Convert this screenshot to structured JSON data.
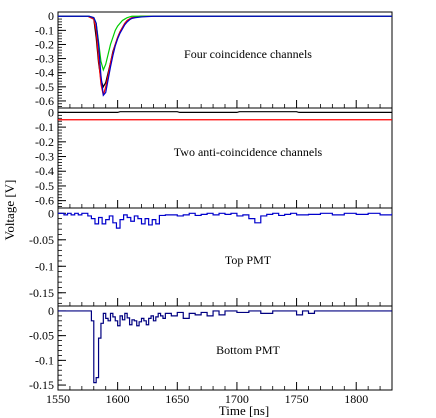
{
  "figure": {
    "ylabel": "Voltage [V]",
    "xlabel": "Time [ns]"
  },
  "colors": {
    "black": "#000000",
    "red": "#ff0000",
    "green": "#00cc00",
    "blue": "#0000cc",
    "navy": "#000080"
  },
  "chart_data": [
    {
      "type": "line",
      "annotation": "Four coincidence channels",
      "xlim": [
        1550,
        1830
      ],
      "ylim": [
        -0.65,
        0.03
      ],
      "yticks": [
        0,
        -0.1,
        -0.2,
        -0.3,
        -0.4,
        -0.5,
        -0.6
      ],
      "ytick_labels": [
        "0",
        "-0.1",
        "-0.2",
        "-0.3",
        "-0.4",
        "-0.5",
        "-0.6"
      ],
      "series": [
        {
          "color_key": "black",
          "x": [
            1550,
            1575,
            1580,
            1582,
            1584,
            1586,
            1588,
            1590,
            1592,
            1594,
            1596,
            1598,
            1600,
            1602,
            1604,
            1606,
            1608,
            1610,
            1612,
            1615,
            1620,
            1630,
            1640,
            1830
          ],
          "y": [
            0,
            0,
            -0.02,
            -0.15,
            -0.33,
            -0.45,
            -0.5,
            -0.47,
            -0.4,
            -0.33,
            -0.25,
            -0.2,
            -0.15,
            -0.11,
            -0.08,
            -0.05,
            -0.03,
            -0.02,
            -0.01,
            -0.005,
            0,
            0,
            0,
            0
          ]
        },
        {
          "color_key": "red",
          "x": [
            1550,
            1575,
            1580,
            1582,
            1584,
            1586,
            1588,
            1590,
            1592,
            1594,
            1596,
            1598,
            1600,
            1602,
            1604,
            1606,
            1608,
            1610,
            1612,
            1615,
            1620,
            1630,
            1640,
            1830
          ],
          "y": [
            0,
            0,
            -0.02,
            -0.1,
            -0.3,
            -0.48,
            -0.56,
            -0.5,
            -0.42,
            -0.33,
            -0.26,
            -0.2,
            -0.15,
            -0.11,
            -0.08,
            -0.05,
            -0.03,
            -0.02,
            -0.01,
            -0.005,
            0,
            0,
            0,
            0
          ]
        },
        {
          "color_key": "green",
          "x": [
            1550,
            1576,
            1580,
            1582,
            1584,
            1586,
            1588,
            1590,
            1592,
            1594,
            1596,
            1598,
            1600,
            1602,
            1604,
            1606,
            1608,
            1610,
            1612,
            1615,
            1620,
            1630,
            1640,
            1830
          ],
          "y": [
            0,
            0,
            -0.01,
            -0.05,
            -0.18,
            -0.32,
            -0.38,
            -0.34,
            -0.27,
            -0.2,
            -0.15,
            -0.1,
            -0.07,
            -0.05,
            -0.03,
            -0.02,
            -0.01,
            -0.005,
            0,
            0,
            0,
            0,
            0,
            0
          ]
        },
        {
          "color_key": "blue",
          "x": [
            1550,
            1576,
            1580,
            1582,
            1584,
            1586,
            1588,
            1590,
            1592,
            1594,
            1596,
            1598,
            1600,
            1602,
            1604,
            1606,
            1608,
            1610,
            1612,
            1615,
            1620,
            1630,
            1640,
            1830
          ],
          "y": [
            0,
            0,
            -0.01,
            -0.05,
            -0.2,
            -0.42,
            -0.56,
            -0.54,
            -0.45,
            -0.36,
            -0.28,
            -0.21,
            -0.16,
            -0.12,
            -0.09,
            -0.06,
            -0.04,
            -0.025,
            -0.015,
            -0.01,
            -0.005,
            0,
            0,
            0
          ]
        }
      ]
    },
    {
      "type": "line",
      "annotation": "Two anti-coincidence channels",
      "xlim": [
        1550,
        1830
      ],
      "ylim": [
        -0.65,
        0.03
      ],
      "yticks": [
        0,
        -0.1,
        -0.2,
        -0.3,
        -0.4,
        -0.5,
        -0.6
      ],
      "ytick_labels": [
        "0",
        "-0.1",
        "-0.2",
        "-0.3",
        "-0.4",
        "-0.5",
        "-0.6"
      ],
      "series": [
        {
          "color_key": "black",
          "x": [
            1550,
            1600,
            1602,
            1650,
            1652,
            1700,
            1702,
            1750,
            1752,
            1830
          ],
          "y": [
            0,
            0,
            0.005,
            0.005,
            0,
            0,
            0.005,
            0.005,
            0,
            0
          ]
        },
        {
          "color_key": "red",
          "x": [
            1550,
            1830
          ],
          "y": [
            -0.05,
            -0.05
          ]
        }
      ]
    },
    {
      "type": "line",
      "annotation": "Top PMT",
      "xlim": [
        1550,
        1830
      ],
      "ylim": [
        -0.175,
        0.01
      ],
      "yticks": [
        0,
        -0.05,
        -0.1,
        -0.15
      ],
      "ytick_labels": [
        "0",
        "-0.05",
        "-0.1",
        "-0.15"
      ],
      "series": [
        {
          "color_key": "blue",
          "step": true,
          "x": [
            1550,
            1555,
            1558,
            1561,
            1564,
            1567,
            1570,
            1575,
            1578,
            1581,
            1584,
            1587,
            1590,
            1593,
            1596,
            1599,
            1602,
            1605,
            1608,
            1611,
            1614,
            1617,
            1620,
            1623,
            1626,
            1629,
            1632,
            1635,
            1640,
            1645,
            1650,
            1655,
            1660,
            1665,
            1670,
            1675,
            1680,
            1685,
            1690,
            1695,
            1700,
            1705,
            1710,
            1715,
            1720,
            1725,
            1730,
            1735,
            1740,
            1745,
            1750,
            1760,
            1770,
            1780,
            1790,
            1800,
            1810,
            1820,
            1830
          ],
          "y": [
            0,
            -0.003,
            0,
            -0.003,
            0,
            -0.003,
            0,
            -0.005,
            -0.01,
            -0.02,
            -0.008,
            -0.02,
            -0.012,
            -0.005,
            -0.018,
            -0.028,
            -0.012,
            -0.003,
            -0.008,
            -0.015,
            -0.005,
            -0.01,
            -0.02,
            -0.01,
            -0.022,
            -0.012,
            -0.02,
            -0.004,
            -0.003,
            -0.003,
            -0.005,
            -0.003,
            0,
            -0.004,
            -0.002,
            0,
            -0.003,
            0,
            -0.002,
            0,
            -0.005,
            -0.003,
            -0.01,
            -0.018,
            -0.005,
            -0.002,
            0,
            -0.004,
            -0.002,
            0,
            -0.003,
            -0.002,
            0,
            -0.003,
            0,
            -0.002,
            0,
            -0.003,
            0
          ]
        }
      ]
    },
    {
      "type": "line",
      "annotation": "Bottom PMT",
      "xlim": [
        1550,
        1830
      ],
      "ylim": [
        -0.16,
        0.01
      ],
      "yticks": [
        0,
        -0.05,
        -0.1,
        -0.15
      ],
      "ytick_labels": [
        "0",
        "-0.05",
        "-0.1",
        "-0.15"
      ],
      "series": [
        {
          "color_key": "navy",
          "step": true,
          "x": [
            1550,
            1576,
            1578,
            1580,
            1582,
            1584,
            1586,
            1588,
            1590,
            1592,
            1594,
            1596,
            1598,
            1600,
            1602,
            1604,
            1606,
            1608,
            1610,
            1612,
            1614,
            1616,
            1618,
            1620,
            1622,
            1624,
            1626,
            1628,
            1630,
            1632,
            1634,
            1636,
            1638,
            1640,
            1645,
            1650,
            1655,
            1660,
            1665,
            1670,
            1675,
            1680,
            1685,
            1690,
            1700,
            1710,
            1720,
            1730,
            1740,
            1750,
            1755,
            1760,
            1765,
            1830
          ],
          "y": [
            0,
            0,
            -0.02,
            -0.145,
            -0.135,
            -0.055,
            -0.025,
            -0.005,
            -0.015,
            -0.02,
            -0.005,
            -0.012,
            -0.02,
            -0.03,
            -0.01,
            -0.018,
            -0.005,
            -0.014,
            -0.028,
            -0.018,
            -0.02,
            -0.03,
            -0.022,
            -0.015,
            -0.02,
            -0.028,
            -0.015,
            -0.01,
            -0.02,
            -0.012,
            -0.005,
            -0.01,
            -0.015,
            -0.005,
            -0.01,
            -0.003,
            -0.015,
            -0.005,
            -0.008,
            -0.003,
            -0.01,
            0,
            -0.008,
            0,
            -0.003,
            0,
            -0.005,
            0,
            0,
            -0.008,
            0,
            -0.005,
            0,
            0
          ]
        }
      ]
    }
  ],
  "xaxis": {
    "ticks": [
      1550,
      1600,
      1650,
      1700,
      1750,
      1800
    ],
    "tick_labels": [
      "1550",
      "1600",
      "1650",
      "1700",
      "1750",
      "1800"
    ]
  }
}
